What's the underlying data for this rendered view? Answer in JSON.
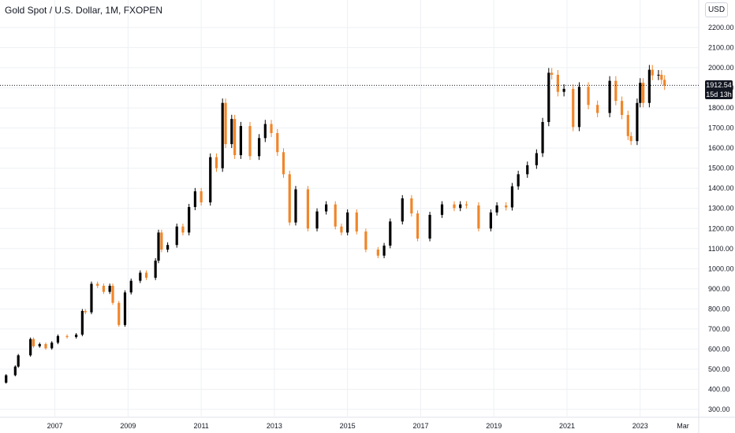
{
  "header": {
    "title": "Gold Spot / U.S. Dollar, 1M, FXOPEN",
    "currency": "USD"
  },
  "last_price": {
    "value": "1912.54",
    "countdown": "15d 13h"
  },
  "colors": {
    "up": "#000000",
    "down": "#f0862a",
    "grid": "#eef0f3",
    "text": "#131722"
  },
  "chart_data": {
    "type": "candlestick",
    "title": "Gold Spot / U.S. Dollar, 1M, FXOPEN",
    "xlabel": "",
    "ylabel": "",
    "ylim": [
      300,
      2200
    ],
    "y_ticks": [
      "2200.00",
      "2100.00",
      "2000.00",
      "1900.00",
      "1800.00",
      "1700.00",
      "1600.00",
      "1500.00",
      "1400.00",
      "1300.00",
      "1200.00",
      "1100.00",
      "1000.00",
      "900.00",
      "800.00",
      "700.00",
      "600.00",
      "500.00",
      "400.00",
      "300.00"
    ],
    "x_ticks": [
      "2007",
      "2009",
      "2011",
      "2013",
      "2015",
      "2017",
      "2019",
      "2021",
      "2023",
      "Mar"
    ],
    "x_tick_dates": [
      2007,
      2009,
      2011,
      2013,
      2015,
      2017,
      2019,
      2021,
      2023,
      2024.17
    ],
    "xlim": [
      2005.5,
      2024.6
    ],
    "last_price": 1912.54,
    "series": [
      {
        "values": [
          [
            "2005-06",
            433
          ],
          [
            "2005-09",
            470
          ],
          [
            "2005-12",
            513
          ],
          [
            "2006-01",
            569
          ],
          [
            "2006-05",
            650
          ],
          [
            "2006-06",
            614
          ],
          [
            "2006-08",
            625
          ],
          [
            "2006-10",
            604
          ],
          [
            "2006-12",
            632
          ],
          [
            "2007-02",
            665
          ],
          [
            "2007-05",
            660
          ],
          [
            "2007-08",
            672
          ],
          [
            "2007-10",
            790
          ],
          [
            "2007-11",
            783
          ],
          [
            "2008-01",
            925
          ],
          [
            "2008-03",
            915
          ],
          [
            "2008-05",
            885
          ],
          [
            "2008-07",
            915
          ],
          [
            "2008-08",
            830
          ],
          [
            "2008-10",
            720
          ],
          [
            "2008-12",
            882
          ],
          [
            "2009-02",
            940
          ],
          [
            "2009-05",
            980
          ],
          [
            "2009-07",
            955
          ],
          [
            "2009-10",
            1040
          ],
          [
            "2009-11",
            1180
          ],
          [
            "2009-12",
            1095
          ],
          [
            "2010-02",
            1118
          ],
          [
            "2010-05",
            1210
          ],
          [
            "2010-07",
            1180
          ],
          [
            "2010-09",
            1307
          ],
          [
            "2010-11",
            1385
          ],
          [
            "2011-01",
            1330
          ],
          [
            "2011-04",
            1555
          ],
          [
            "2011-06",
            1500
          ],
          [
            "2011-08",
            1825
          ],
          [
            "2011-09",
            1620
          ],
          [
            "2011-11",
            1745
          ],
          [
            "2011-12",
            1565
          ],
          [
            "2012-02",
            1710
          ],
          [
            "2012-05",
            1560
          ],
          [
            "2012-08",
            1650
          ],
          [
            "2012-10",
            1720
          ],
          [
            "2012-12",
            1675
          ],
          [
            "2013-02",
            1580
          ],
          [
            "2013-04",
            1470
          ],
          [
            "2013-06",
            1230
          ],
          [
            "2013-08",
            1395
          ],
          [
            "2013-12",
            1200
          ],
          [
            "2014-03",
            1285
          ],
          [
            "2014-06",
            1320
          ],
          [
            "2014-09",
            1210
          ],
          [
            "2014-11",
            1180
          ],
          [
            "2015-01",
            1280
          ],
          [
            "2015-04",
            1185
          ],
          [
            "2015-07",
            1095
          ],
          [
            "2015-11",
            1065
          ],
          [
            "2016-01",
            1115
          ],
          [
            "2016-03",
            1235
          ],
          [
            "2016-07",
            1350
          ],
          [
            "2016-10",
            1275
          ],
          [
            "2016-12",
            1150
          ],
          [
            "2017-04",
            1268
          ],
          [
            "2017-08",
            1320
          ],
          [
            "2017-12",
            1302
          ],
          [
            "2018-02",
            1320
          ],
          [
            "2018-04",
            1315
          ],
          [
            "2018-08",
            1200
          ],
          [
            "2018-12",
            1280
          ],
          [
            "2019-02",
            1315
          ],
          [
            "2019-05",
            1305
          ],
          [
            "2019-07",
            1410
          ],
          [
            "2019-09",
            1470
          ],
          [
            "2019-12",
            1515
          ],
          [
            "2020-03",
            1575
          ],
          [
            "2020-05",
            1730
          ],
          [
            "2020-07",
            1975
          ],
          [
            "2020-08",
            1965
          ],
          [
            "2020-10",
            1880
          ],
          [
            "2020-12",
            1895
          ],
          [
            "2021-03",
            1705
          ],
          [
            "2021-05",
            1905
          ],
          [
            "2021-08",
            1815
          ],
          [
            "2021-11",
            1775
          ],
          [
            "2022-03",
            1935
          ],
          [
            "2022-05",
            1835
          ],
          [
            "2022-07",
            1765
          ],
          [
            "2022-09",
            1660
          ],
          [
            "2022-10",
            1635
          ],
          [
            "2022-12",
            1825
          ],
          [
            "2023-01",
            1925
          ],
          [
            "2023-02",
            1825
          ],
          [
            "2023-04",
            1990
          ],
          [
            "2023-05",
            1962
          ],
          [
            "2023-07",
            1965
          ],
          [
            "2023-08",
            1940
          ],
          [
            "2023-09",
            1912.54
          ]
        ]
      }
    ]
  }
}
